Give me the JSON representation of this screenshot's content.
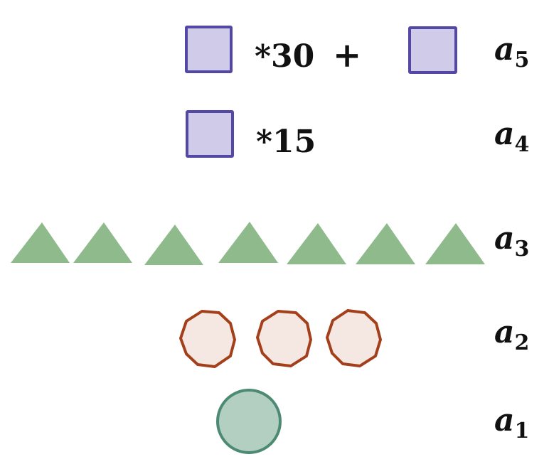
{
  "rows": [
    {
      "label": "a",
      "index": "5",
      "multiplier": "*30",
      "operator": "+"
    },
    {
      "label": "a",
      "index": "4",
      "multiplier": "*15"
    },
    {
      "label": "a",
      "index": "3"
    },
    {
      "label": "a",
      "index": "2"
    },
    {
      "label": "a",
      "index": "1"
    }
  ],
  "shapes": {
    "square": {
      "fill": "#cfcbe9",
      "stroke": "#5448a6",
      "count_row5": 2,
      "count_row4": 1
    },
    "triangle": {
      "fill": "#8fbb8c",
      "count": 7
    },
    "decagon": {
      "fill": "#f5e8e3",
      "stroke": "#a3401b",
      "count": 3
    },
    "circle": {
      "fill": "#b2cfc1",
      "stroke": "#4d8a73",
      "count": 1
    }
  }
}
